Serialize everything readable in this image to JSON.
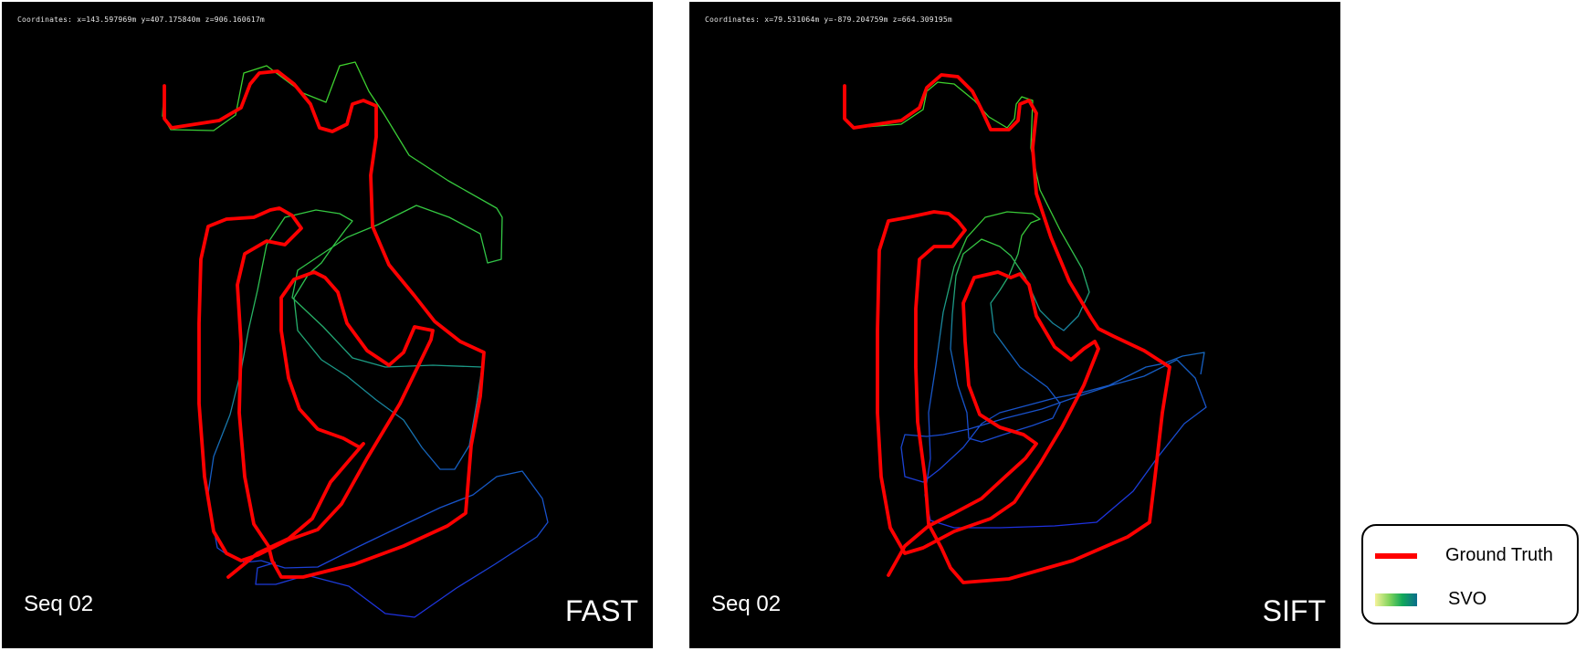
{
  "panels": [
    {
      "id": "fast",
      "coordinates": "Coordinates: x=143.597969m y=407.175840m z=906.160617m",
      "sequence": "Seq 02",
      "method": "FAST"
    },
    {
      "id": "sift",
      "coordinates": "Coordinates: x=79.531064m y=-879.204759m z=664.309195m",
      "sequence": "Seq 02",
      "method": "SIFT"
    }
  ],
  "legend": {
    "items": [
      {
        "label": "Ground Truth",
        "color": "#ff0000"
      },
      {
        "label": "SVO",
        "colors": [
          "#f4f29a",
          "#7fd35c",
          "#12a85a",
          "#0a6d8c",
          "#1f2fe0"
        ]
      }
    ]
  },
  "colors": {
    "background": "#000000",
    "ground_truth": "#ff0000",
    "svo_green": "#3fd22c",
    "svo_teal": "#1b9a88",
    "svo_blue": "#1e30e0"
  }
}
